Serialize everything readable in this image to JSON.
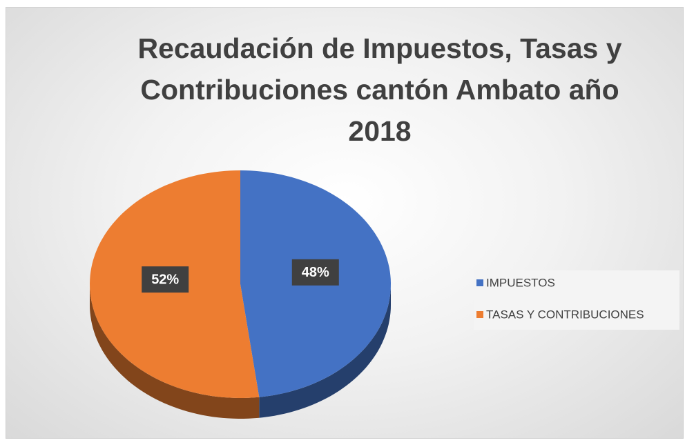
{
  "chart_data": {
    "type": "pie",
    "title": "Recaudación de Impuestos, Tasas y Contribuciones cantón Ambato año 2018",
    "categories": [
      "IMPUESTOS",
      "TASAS Y CONTRIBUCIONES"
    ],
    "values": [
      48,
      52
    ],
    "value_labels": [
      "48%",
      "52%"
    ],
    "colors": [
      "#4472c4",
      "#ed7d31"
    ],
    "legend": "right"
  }
}
